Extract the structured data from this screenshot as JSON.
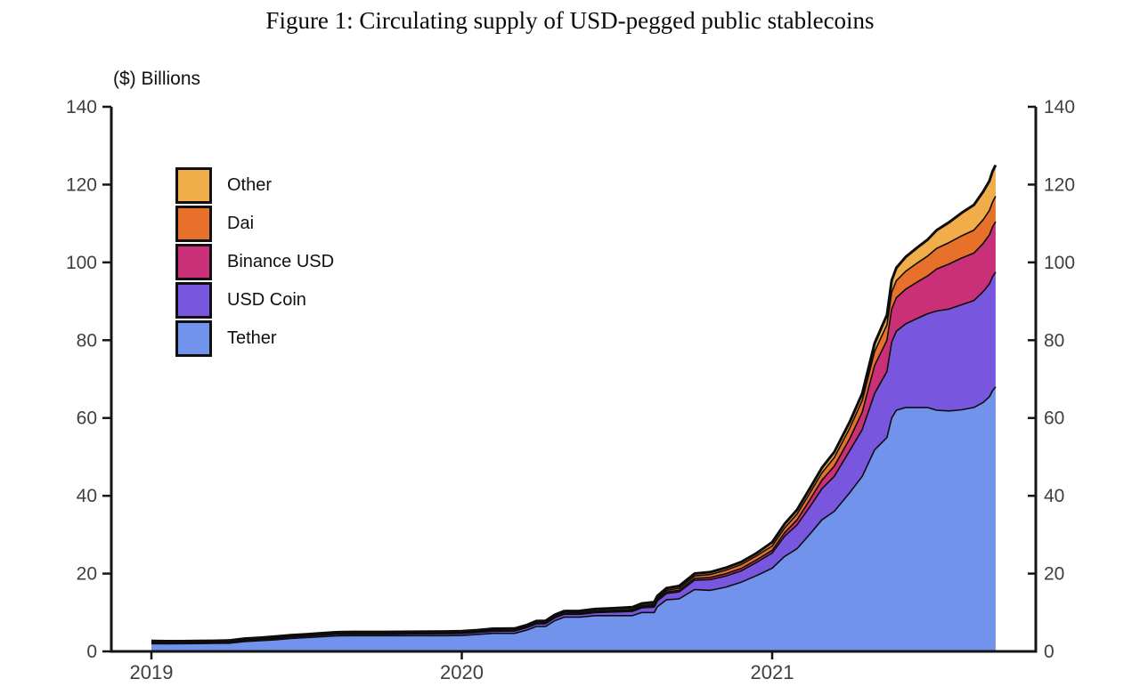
{
  "figure": {
    "title": "Figure 1: Circulating supply of USD-pegged public stablecoins",
    "y_axis_label": "($) Billions"
  },
  "colors": {
    "tether": "#7193ec",
    "usd_coin": "#7857de",
    "binance_usd": "#c93077",
    "dai": "#e7712b",
    "other": "#f1ad49",
    "outline": "#0c0c0c",
    "axis": "#151515",
    "tick_text": "#3f3f3f"
  },
  "chart_data": {
    "type": "area",
    "stacked": true,
    "title": "Figure 1: Circulating supply of USD-pegged public stablecoins",
    "xlabel": "",
    "ylabel": "($) Billions",
    "ylim": [
      0,
      140
    ],
    "xlim": [
      2018.87,
      2021.85
    ],
    "y_ticks": [
      0,
      20,
      40,
      60,
      80,
      100,
      120,
      140
    ],
    "x_ticks": [
      2019,
      2020,
      2021
    ],
    "x_tick_labels": [
      "2019",
      "2020",
      "2021"
    ],
    "grid": false,
    "legend_position": "upper-left-inside",
    "legend": [
      {
        "label": "Other",
        "color": "#f1ad49"
      },
      {
        "label": "Dai",
        "color": "#e7712b"
      },
      {
        "label": "Binance USD",
        "color": "#c93077"
      },
      {
        "label": "USD Coin",
        "color": "#7857de"
      },
      {
        "label": "Tether",
        "color": "#7193ec"
      }
    ],
    "x": [
      2019.0,
      2019.05,
      2019.1,
      2019.15,
      2019.2,
      2019.25,
      2019.3,
      2019.35,
      2019.4,
      2019.45,
      2019.5,
      2019.55,
      2019.6,
      2019.65,
      2019.7,
      2019.75,
      2019.8,
      2019.85,
      2019.9,
      2019.95,
      2020.0,
      2020.05,
      2020.1,
      2020.17,
      2020.21,
      2020.24,
      2020.27,
      2020.3,
      2020.33,
      2020.38,
      2020.43,
      2020.48,
      2020.52,
      2020.55,
      2020.58,
      2020.62,
      2020.63,
      2020.66,
      2020.7,
      2020.75,
      2020.8,
      2020.85,
      2020.9,
      2020.95,
      2021.0,
      2021.04,
      2021.08,
      2021.12,
      2021.16,
      2021.2,
      2021.25,
      2021.29,
      2021.33,
      2021.37,
      2021.385,
      2021.4,
      2021.43,
      2021.47,
      2021.5,
      2021.53,
      2021.57,
      2021.61,
      2021.65,
      2021.68,
      2021.7,
      2021.71,
      2021.72
    ],
    "series": [
      {
        "name": "Tether",
        "color": "#7193ec",
        "values": [
          2.0,
          1.97,
          1.98,
          2.02,
          2.05,
          2.1,
          2.55,
          2.75,
          3.0,
          3.35,
          3.55,
          3.8,
          4.0,
          4.05,
          4.05,
          4.05,
          4.05,
          4.05,
          4.05,
          4.05,
          4.1,
          4.35,
          4.65,
          4.65,
          5.5,
          6.4,
          6.4,
          7.9,
          8.8,
          8.8,
          9.2,
          9.2,
          9.2,
          9.2,
          10.0,
          10.0,
          11.5,
          13.3,
          13.5,
          15.9,
          15.7,
          16.5,
          17.8,
          19.5,
          21.4,
          24.4,
          26.4,
          30.0,
          33.8,
          36.0,
          40.8,
          45.0,
          51.8,
          55.0,
          60.0,
          62.0,
          62.7,
          62.7,
          62.7,
          62.0,
          61.8,
          62.1,
          62.7,
          64.0,
          65.5,
          67.0,
          68.0
        ]
      },
      {
        "name": "USD Coin",
        "color": "#7857de",
        "values": [
          0.3,
          0.27,
          0.25,
          0.24,
          0.26,
          0.29,
          0.31,
          0.33,
          0.35,
          0.37,
          0.39,
          0.41,
          0.43,
          0.45,
          0.44,
          0.43,
          0.45,
          0.48,
          0.5,
          0.52,
          0.52,
          0.52,
          0.54,
          0.58,
          0.63,
          0.68,
          0.71,
          0.73,
          0.73,
          0.74,
          0.76,
          0.9,
          1.0,
          1.1,
          1.18,
          1.4,
          1.45,
          1.6,
          1.8,
          2.4,
          2.75,
          2.85,
          2.9,
          3.4,
          3.9,
          5.2,
          6.1,
          7.0,
          8.0,
          9.0,
          10.8,
          12.0,
          14.5,
          17.0,
          19.5,
          20.3,
          21.5,
          23.0,
          24.1,
          25.5,
          26.2,
          27.0,
          27.5,
          28.5,
          29.0,
          29.3,
          29.5
        ]
      },
      {
        "name": "Binance USD",
        "color": "#c93077",
        "values": [
          0.0,
          0.0,
          0.0,
          0.0,
          0.0,
          0.0,
          0.0,
          0.0,
          0.0,
          0.0,
          0.0,
          0.0,
          0.0,
          0.0,
          0.0,
          0.0,
          0.0,
          0.0,
          0.0,
          0.0,
          0.02,
          0.03,
          0.05,
          0.09,
          0.12,
          0.15,
          0.17,
          0.19,
          0.2,
          0.22,
          0.24,
          0.26,
          0.27,
          0.28,
          0.3,
          0.35,
          0.36,
          0.38,
          0.42,
          0.48,
          0.55,
          0.6,
          0.62,
          0.65,
          0.68,
          0.9,
          1.3,
          1.8,
          2.2,
          2.6,
          3.1,
          4.5,
          7.2,
          8.0,
          8.5,
          8.6,
          8.9,
          9.4,
          9.7,
          10.8,
          11.6,
          12.0,
          12.2,
          12.4,
          12.6,
          12.8,
          13.0
        ]
      },
      {
        "name": "Dai",
        "color": "#e7712b",
        "values": [
          0.07,
          0.08,
          0.08,
          0.09,
          0.09,
          0.09,
          0.09,
          0.1,
          0.1,
          0.1,
          0.1,
          0.1,
          0.1,
          0.1,
          0.1,
          0.1,
          0.1,
          0.1,
          0.11,
          0.11,
          0.12,
          0.12,
          0.13,
          0.1,
          0.08,
          0.1,
          0.11,
          0.12,
          0.13,
          0.14,
          0.16,
          0.19,
          0.22,
          0.25,
          0.3,
          0.36,
          0.38,
          0.44,
          0.52,
          0.62,
          0.76,
          0.9,
          1.0,
          1.05,
          1.1,
          1.2,
          1.5,
          1.7,
          1.9,
          2.2,
          2.7,
          3.0,
          3.6,
          4.0,
          4.3,
          4.4,
          4.6,
          4.9,
          5.1,
          5.3,
          5.5,
          5.7,
          5.9,
          6.1,
          6.3,
          6.4,
          6.5
        ]
      },
      {
        "name": "Other",
        "color": "#f1ad49",
        "values": [
          0.31,
          0.31,
          0.31,
          0.32,
          0.32,
          0.33,
          0.34,
          0.35,
          0.36,
          0.37,
          0.38,
          0.39,
          0.4,
          0.41,
          0.42,
          0.42,
          0.43,
          0.43,
          0.44,
          0.44,
          0.45,
          0.45,
          0.46,
          0.46,
          0.47,
          0.47,
          0.48,
          0.49,
          0.5,
          0.51,
          0.52,
          0.53,
          0.54,
          0.54,
          0.55,
          0.56,
          0.56,
          0.57,
          0.58,
          0.62,
          0.62,
          0.64,
          0.66,
          0.68,
          1.0,
          1.05,
          1.1,
          1.2,
          1.3,
          1.45,
          1.6,
          1.8,
          2.1,
          2.5,
          3.1,
          3.3,
          3.7,
          4.0,
          4.2,
          4.7,
          5.2,
          5.9,
          6.5,
          7.2,
          7.6,
          7.9,
          8.0
        ]
      }
    ]
  }
}
